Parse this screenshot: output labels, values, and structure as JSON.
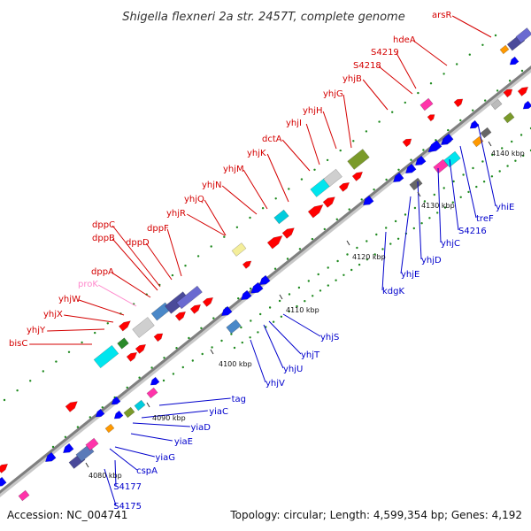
{
  "title": "Shigella flexneri 2a str. 2457T, complete genome",
  "footer": {
    "accession": "Accession: NC_004741",
    "topology": "Topology: circular; Length: 4,599,354 bp; Genes: 4,192"
  },
  "colors": {
    "forward_label": "#d40000",
    "reverse_label": "#0000cc",
    "pseudo_label": "#ff88cc",
    "backbone": "#8a8a8a",
    "forward_gene": "#ff0000",
    "reverse_gene": "#0000ff"
  },
  "ticks": [
    "4080 kbp",
    "4090 kbp",
    "4100 kbp",
    "4110 kbp",
    "4120 kbp",
    "4130 kbp",
    "4140 kbp"
  ],
  "forward_labels": [
    "arsR",
    "hdeA",
    "S4219",
    "S4218",
    "yhjB",
    "yhjG",
    "yhjH",
    "yhjI",
    "dctA",
    "yhjK",
    "yhjM",
    "yhjN",
    "yhjQ",
    "yhjR",
    "dppF",
    "dppC",
    "dppB",
    "dppD",
    "dppA",
    "proK",
    "yhjW",
    "yhjX",
    "yhjY",
    "bisC"
  ],
  "reverse_labels": [
    "yhiE",
    "treF",
    "S4216",
    "yhjC",
    "yhjD",
    "yhjE",
    "kdgK",
    "yhjS",
    "yhjT",
    "yhjU",
    "yhjV",
    "tag",
    "yiaC",
    "yiaD",
    "yiaE",
    "yiaG",
    "cspA",
    "S4177",
    "S4175"
  ]
}
